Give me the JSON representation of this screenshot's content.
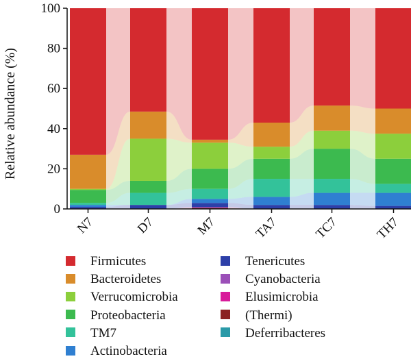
{
  "chart_data": {
    "type": "bar",
    "stacked": true,
    "percent": true,
    "flows_between_bars": true,
    "ylabel": "Relative abundance (%)",
    "ylim": [
      0,
      100
    ],
    "yticks": [
      "0",
      "20",
      "40",
      "60",
      "80",
      "100"
    ],
    "categories": [
      "N7",
      "D7",
      "M7",
      "TA7",
      "TC7",
      "TH7"
    ],
    "legend_position": "bottom",
    "series": [
      {
        "name": "Deferribacteres",
        "color": "#2a9aa8",
        "values": [
          0,
          0,
          0,
          0,
          0,
          0
        ]
      },
      {
        "name": "(Thermi)",
        "color": "#8b2323",
        "values": [
          0,
          0,
          0.5,
          0,
          0,
          0
        ]
      },
      {
        "name": "Elusimicrobia",
        "color": "#d81b9a",
        "values": [
          0,
          0,
          0,
          0,
          0,
          0
        ]
      },
      {
        "name": "Cyanobacteria",
        "color": "#9b4fb8",
        "values": [
          0,
          0,
          0.5,
          0,
          0,
          0
        ]
      },
      {
        "name": "Tenericutes",
        "color": "#2d3fa8",
        "values": [
          1,
          2,
          2,
          2,
          2,
          1.5
        ]
      },
      {
        "name": "Actinobacteria",
        "color": "#2f7fd1",
        "values": [
          1,
          0,
          2,
          4,
          6,
          6.5
        ]
      },
      {
        "name": "TM7",
        "color": "#33c29a",
        "values": [
          1,
          6,
          5,
          9,
          7,
          4.5
        ]
      },
      {
        "name": "Proteobacteria",
        "color": "#3cba4f",
        "values": [
          6.5,
          6,
          10,
          10,
          15,
          12.5
        ]
      },
      {
        "name": "Verrucomicrobia",
        "color": "#8ccf3c",
        "values": [
          0.5,
          21,
          13,
          6,
          9,
          12.5
        ]
      },
      {
        "name": "Bacteroidetes",
        "color": "#d98c2b",
        "values": [
          17,
          13.5,
          1.5,
          12,
          12.5,
          12.5
        ]
      },
      {
        "name": "Firmicutes",
        "color": "#d42a2f",
        "values": [
          73,
          51.5,
          65.5,
          57,
          48.5,
          50
        ]
      }
    ]
  },
  "legend": {
    "col1": [
      "Firmicutes",
      "Bacteroidetes",
      "Verrucomicrobia",
      "Proteobacteria",
      "TM7",
      "Actinobacteria"
    ],
    "col2": [
      "Tenericutes",
      "Cyanobacteria",
      "Elusimicrobia",
      "(Thermi)",
      "Deferribacteres"
    ]
  }
}
